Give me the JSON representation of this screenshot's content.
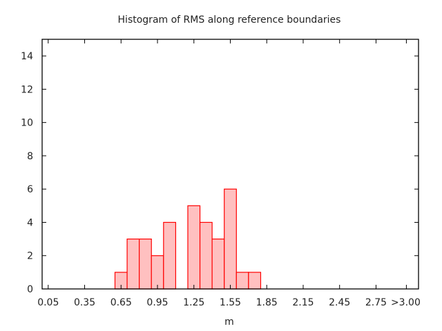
{
  "chart_data": {
    "type": "bar",
    "title": "Histogram of RMS along reference boundaries",
    "xlabel": "m",
    "ylabel": "",
    "xlim": [
      0,
      3.1
    ],
    "ylim": [
      0,
      15
    ],
    "grid": false,
    "x_ticks": [
      {
        "value": 0.05,
        "label": "0.05"
      },
      {
        "value": 0.35,
        "label": "0.35"
      },
      {
        "value": 0.65,
        "label": "0.65"
      },
      {
        "value": 0.95,
        "label": "0.95"
      },
      {
        "value": 1.25,
        "label": "1.25"
      },
      {
        "value": 1.55,
        "label": "1.55"
      },
      {
        "value": 1.85,
        "label": "1.85"
      },
      {
        "value": 2.15,
        "label": "2.15"
      },
      {
        "value": 2.45,
        "label": "2.45"
      },
      {
        "value": 2.75,
        "label": "2.75"
      },
      {
        "value": 3.0,
        "label": ">3.00"
      }
    ],
    "y_ticks": [
      0,
      2,
      4,
      6,
      8,
      10,
      12,
      14
    ],
    "bin_width": 0.1,
    "bin_centers": [
      0.65,
      0.75,
      0.85,
      0.95,
      1.05,
      1.15,
      1.25,
      1.35,
      1.45,
      1.55,
      1.65,
      1.75
    ],
    "values": [
      1,
      3,
      3,
      2,
      4,
      0,
      5,
      4,
      3,
      6,
      1,
      1
    ],
    "bar_fill": "#ffc0c0",
    "bar_stroke": "#ff0000"
  }
}
